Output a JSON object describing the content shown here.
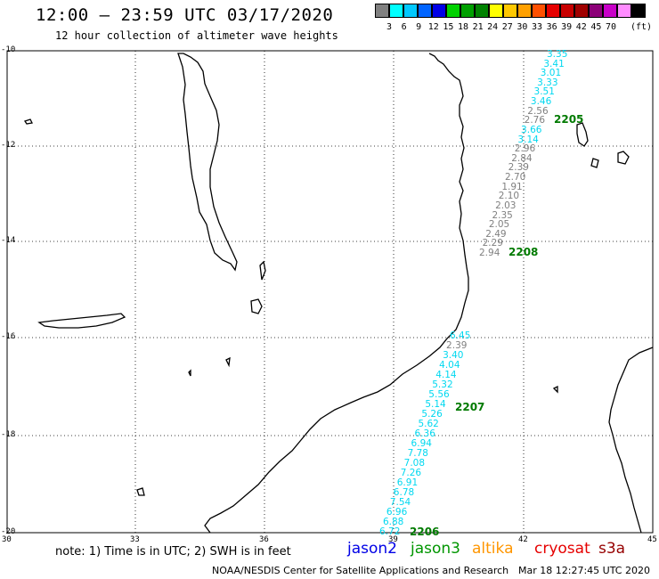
{
  "header": {
    "title": "12:00 – 23:59 UTC 03/17/2020",
    "subtitle": "12 hour collection of altimeter wave heights"
  },
  "scale": {
    "colors": [
      "#808080",
      "#00ffff",
      "#00c8ff",
      "#0064ff",
      "#0000e6",
      "#00d200",
      "#00a000",
      "#008200",
      "#ffff00",
      "#ffc800",
      "#ffa000",
      "#ff5000",
      "#e60000",
      "#c80000",
      "#a00000",
      "#8c0078",
      "#c800c8",
      "#ff8cff",
      "#000000"
    ],
    "labels": [
      "3",
      "6",
      "9",
      "12",
      "15",
      "18",
      "21",
      "24",
      "27",
      "30",
      "33",
      "36",
      "39",
      "42",
      "45",
      "70"
    ],
    "unit": "(ft)"
  },
  "axes": {
    "lat_labels": [
      "-10",
      "-12",
      "-14",
      "-16",
      "-18",
      "-20"
    ],
    "lon_labels": [
      "30",
      "33",
      "36",
      "39",
      "42",
      "45"
    ]
  },
  "colors": {
    "cyan": "#00d8f0",
    "gray": "#808080",
    "pass_green": "#007a00"
  },
  "tracks": {
    "north": {
      "values": [
        {
          "v": "3.35",
          "c": "cyan"
        },
        {
          "v": "3.41",
          "c": "cyan"
        },
        {
          "v": "3.01",
          "c": "cyan"
        },
        {
          "v": "3.33",
          "c": "cyan"
        },
        {
          "v": "3.51",
          "c": "cyan"
        },
        {
          "v": "3.46",
          "c": "cyan"
        },
        {
          "v": "2.56",
          "c": "gray"
        },
        {
          "v": "2.76",
          "c": "gray"
        },
        {
          "v": "3.66",
          "c": "cyan"
        },
        {
          "v": "3.14",
          "c": "cyan"
        },
        {
          "v": "2.96",
          "c": "gray"
        },
        {
          "v": "2.84",
          "c": "gray"
        },
        {
          "v": "2.39",
          "c": "gray"
        },
        {
          "v": "2.70",
          "c": "gray"
        },
        {
          "v": "1.91",
          "c": "gray"
        },
        {
          "v": "2.10",
          "c": "gray"
        },
        {
          "v": "2.03",
          "c": "gray"
        },
        {
          "v": "2.35",
          "c": "gray"
        },
        {
          "v": "2.05",
          "c": "gray"
        },
        {
          "v": "2.49",
          "c": "gray"
        },
        {
          "v": "2.29",
          "c": "gray"
        },
        {
          "v": "2.94",
          "c": "gray"
        }
      ],
      "pass_labels": [
        "2205",
        "2208"
      ]
    },
    "south": {
      "values": [
        {
          "v": "6.45",
          "c": "cyan"
        },
        {
          "v": "2.39",
          "c": "gray"
        },
        {
          "v": "3.40",
          "c": "cyan"
        },
        {
          "v": "4.04",
          "c": "cyan"
        },
        {
          "v": "4.14",
          "c": "cyan"
        },
        {
          "v": "5.32",
          "c": "cyan"
        },
        {
          "v": "5.56",
          "c": "cyan"
        },
        {
          "v": "5.14",
          "c": "cyan"
        },
        {
          "v": "5.26",
          "c": "cyan"
        },
        {
          "v": "5.62",
          "c": "cyan"
        },
        {
          "v": "6.36",
          "c": "cyan"
        },
        {
          "v": "6.94",
          "c": "cyan"
        },
        {
          "v": "7.78",
          "c": "cyan"
        },
        {
          "v": "7.08",
          "c": "cyan"
        },
        {
          "v": "7.26",
          "c": "cyan"
        },
        {
          "v": "6.91",
          "c": "cyan"
        },
        {
          "v": "6.78",
          "c": "cyan"
        },
        {
          "v": "7.54",
          "c": "cyan"
        },
        {
          "v": "6.96",
          "c": "cyan"
        },
        {
          "v": "6.88",
          "c": "cyan"
        },
        {
          "v": "6.72",
          "c": "cyan"
        }
      ],
      "pass_labels": [
        "2207",
        "2206"
      ]
    }
  },
  "legend": {
    "note": "note: 1) Time is in UTC; 2) SWH is in feet",
    "satellites": [
      {
        "name": "jason2",
        "color": "#0000e6"
      },
      {
        "name": "jason3",
        "color": "#009600"
      },
      {
        "name": "altika",
        "color": "#ff9600"
      },
      {
        "name": "cryosat",
        "color": "#e60000"
      },
      {
        "name": "s3a",
        "color": "#960000"
      }
    ]
  },
  "footer": {
    "center": "NOAA/NESDIS Center for Satellite Applications and Research",
    "timestamp": "Mar 18 12:27:45 UTC 2020"
  }
}
